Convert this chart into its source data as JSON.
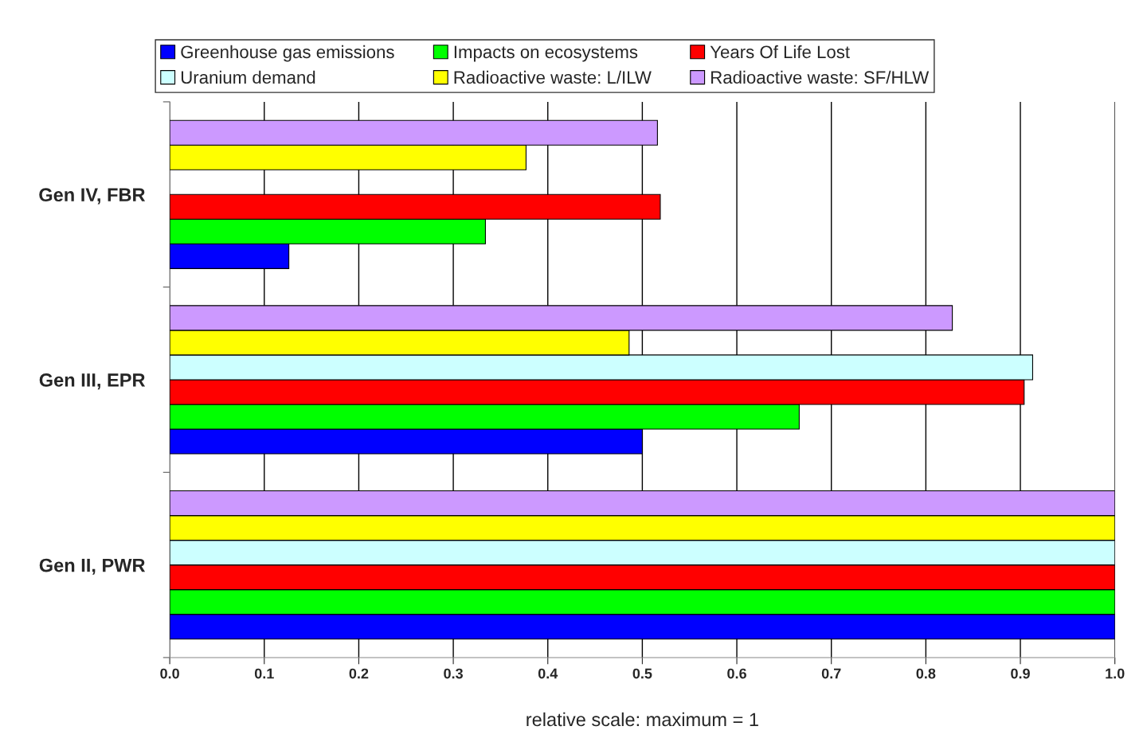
{
  "chart_data": {
    "type": "bar",
    "orientation": "horizontal",
    "xlabel": "relative scale: maximum = 1",
    "categories": [
      "Gen IV, FBR",
      "Gen III, EPR",
      "Gen II, PWR"
    ],
    "series": [
      {
        "name": "Greenhouse gas emissions",
        "color": "#0000ff",
        "values": [
          0.126,
          0.5,
          1
        ]
      },
      {
        "name": "Impacts on ecosystems",
        "color": "#00ff00",
        "values": [
          0.334,
          0.666,
          1
        ]
      },
      {
        "name": "Years Of Life Lost",
        "color": "#ff0000",
        "values": [
          0.519,
          0.904,
          1
        ]
      },
      {
        "name": "Uranium demand",
        "color": "#ccffff",
        "values": [
          null,
          0.913,
          1
        ]
      },
      {
        "name": "Radioactive waste: L/ILW",
        "color": "#ffff00",
        "values": [
          0.377,
          0.486,
          1
        ]
      },
      {
        "name": "Radioactive waste: SF/HLW",
        "color": "#cc99ff",
        "values": [
          0.516,
          0.828,
          1
        ]
      }
    ],
    "xlim": [
      0,
      1
    ],
    "xticks": [
      {
        "value": 0,
        "label": "0.0"
      },
      {
        "value": 0.1,
        "label": "0.1"
      },
      {
        "value": 0.2,
        "label": "0.2"
      },
      {
        "value": 0.3,
        "label": "0.3"
      },
      {
        "value": 0.4,
        "label": "0.4"
      },
      {
        "value": 0.5,
        "label": "0.5"
      },
      {
        "value": 0.6,
        "label": "0.6"
      },
      {
        "value": 0.7,
        "label": "0.7"
      },
      {
        "value": 0.8,
        "label": "0.8"
      },
      {
        "value": 0.9,
        "label": "0.9"
      },
      {
        "value": 1,
        "label": "1.0"
      }
    ],
    "grid": "x",
    "legend": "top"
  }
}
